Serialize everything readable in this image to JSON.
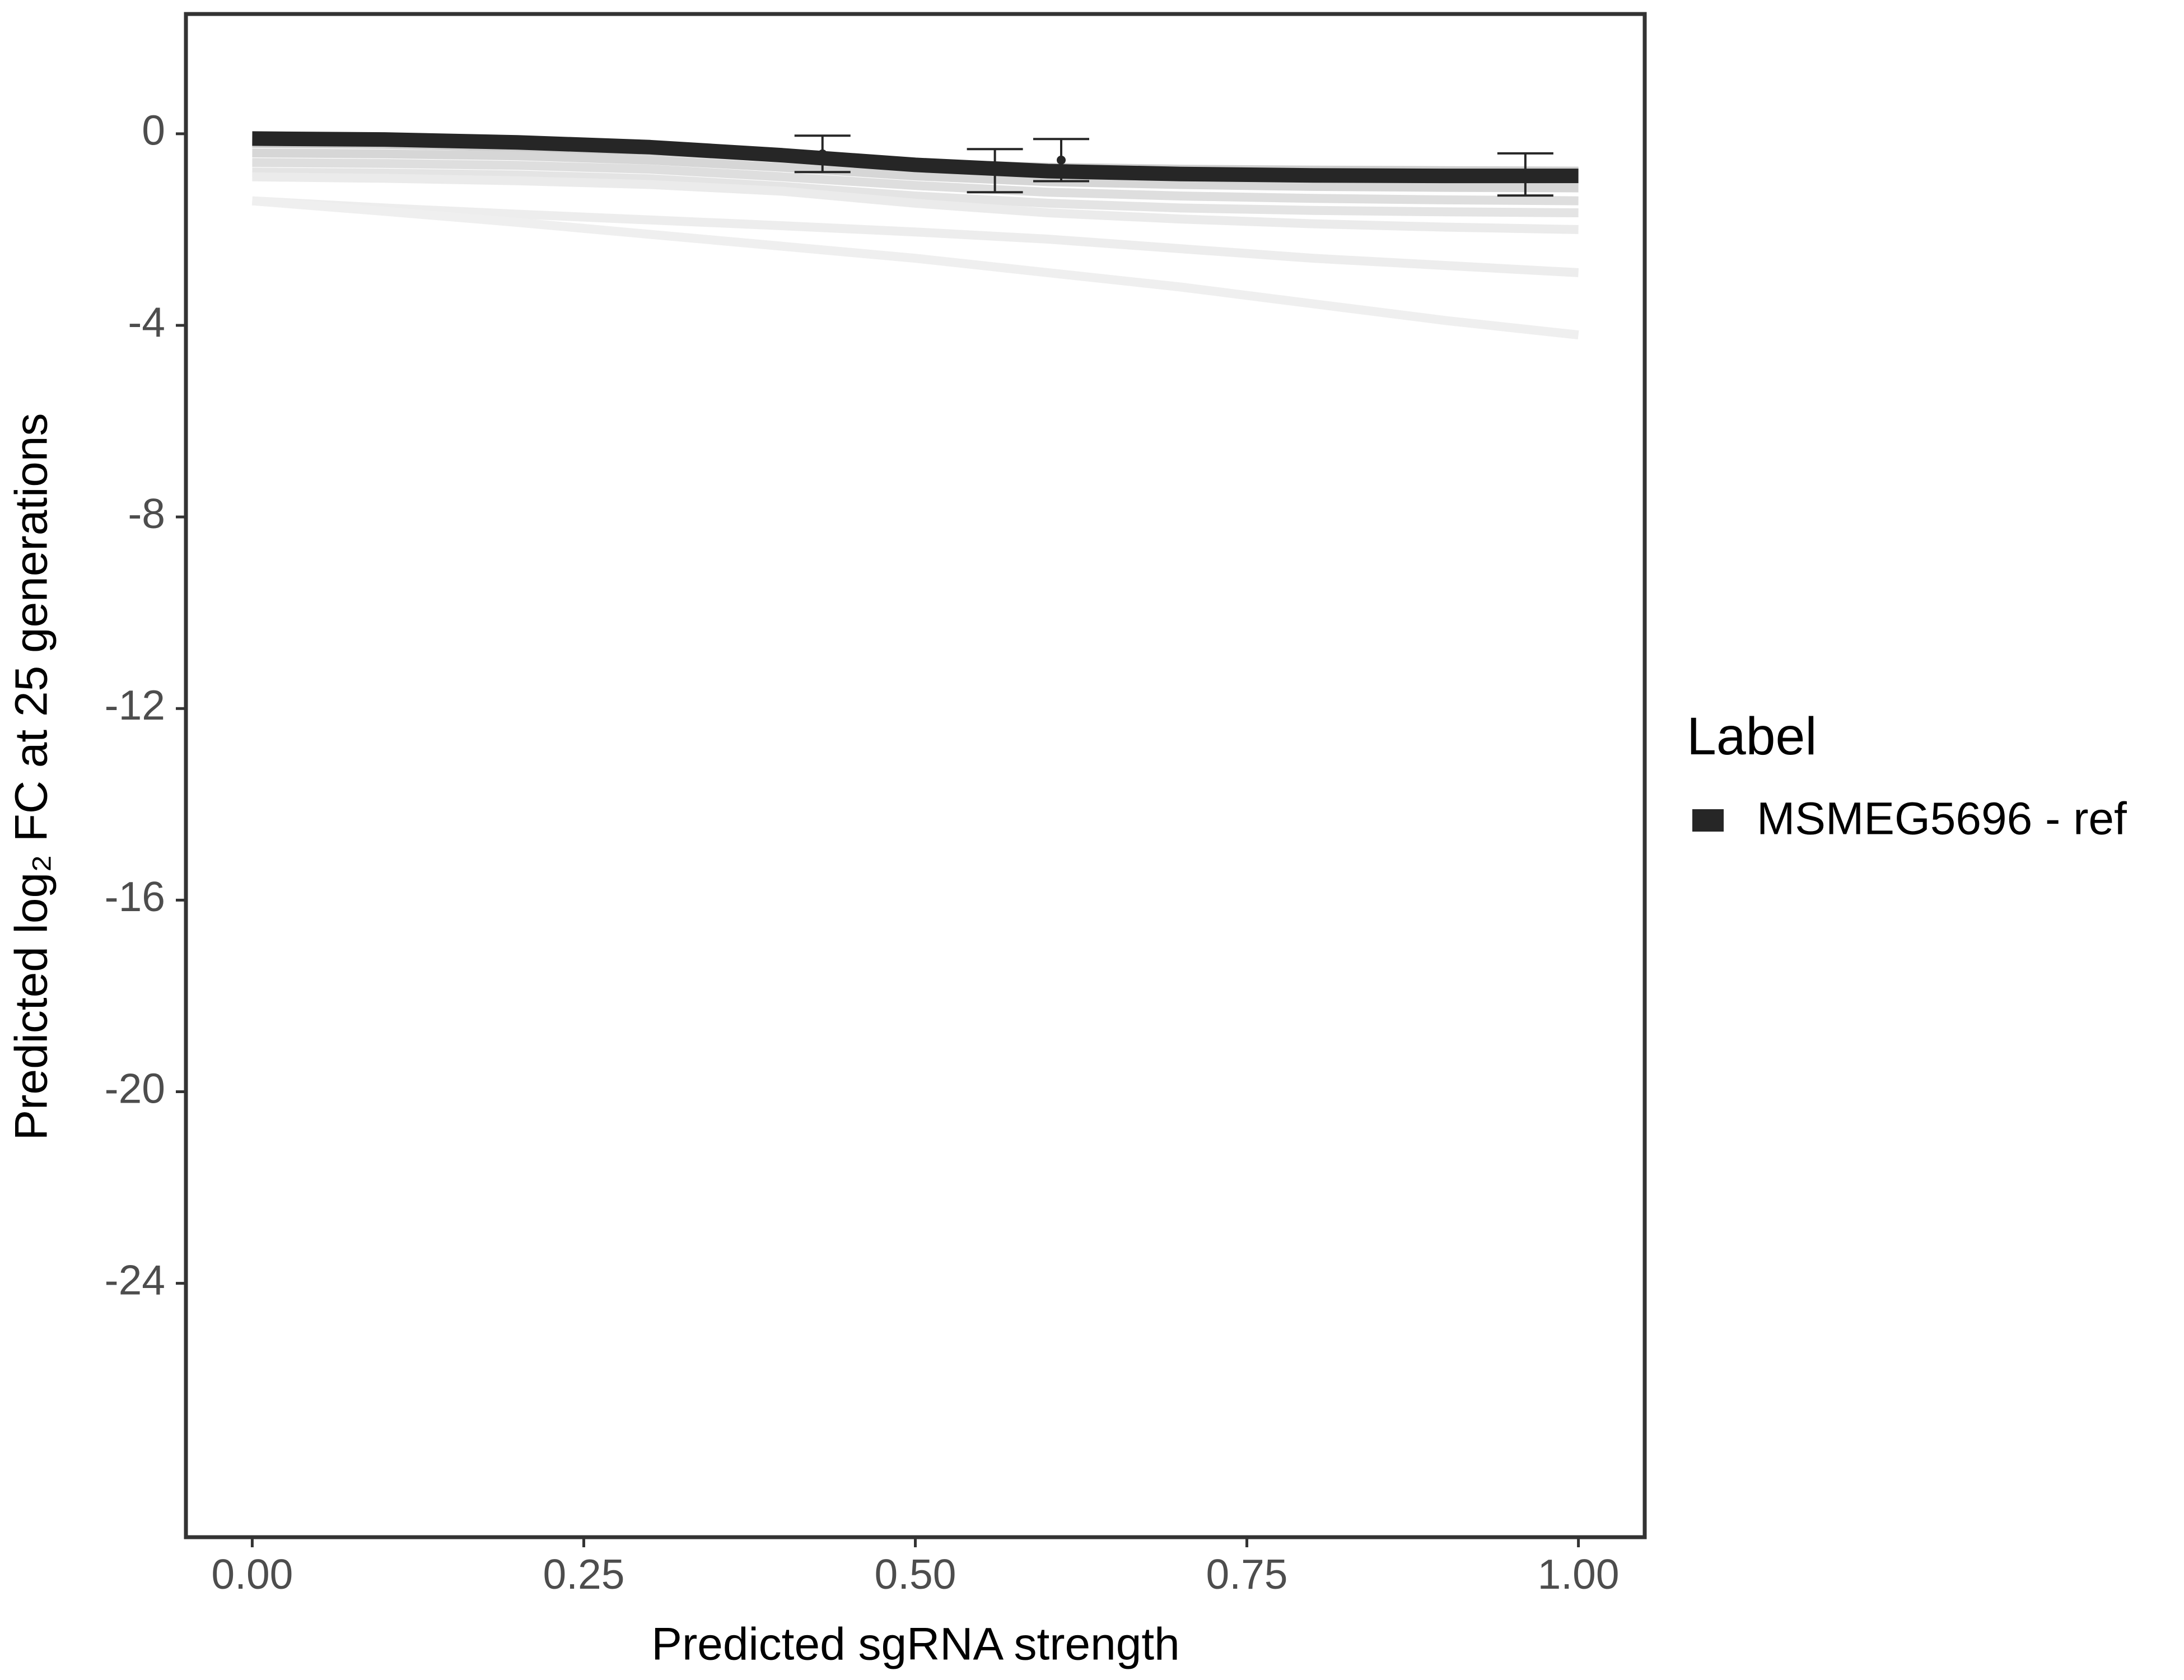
{
  "chart_data": {
    "type": "line",
    "x_label": "Predicted sgRNA strength",
    "y_label": "Predicted  log₂ FC at 25 generations",
    "legend_title": "Label",
    "legend_position": "right",
    "x": [
      0,
      0.1,
      0.2,
      0.3,
      0.4,
      0.5,
      0.6,
      0.7,
      0.8,
      0.9,
      1.0
    ],
    "series": [
      {
        "name": "MSMEG5696 - ref",
        "color": "#262626",
        "values": [
          -0.1,
          -0.12,
          -0.18,
          -0.28,
          -0.45,
          -0.65,
          -0.78,
          -0.84,
          -0.87,
          -0.88,
          -0.88
        ]
      }
    ],
    "reference_lines": [
      {
        "color": "#cfcfcf",
        "values": [
          -0.2,
          -0.22,
          -0.28,
          -0.36,
          -0.5,
          -0.62,
          -0.7,
          -0.74,
          -0.76,
          -0.77,
          -0.78
        ]
      },
      {
        "color": "#d6d6d6",
        "values": [
          -0.4,
          -0.42,
          -0.46,
          -0.55,
          -0.7,
          -0.88,
          -1.0,
          -1.06,
          -1.1,
          -1.12,
          -1.13
        ]
      },
      {
        "color": "#dedede",
        "values": [
          -0.6,
          -0.62,
          -0.66,
          -0.74,
          -0.9,
          -1.08,
          -1.22,
          -1.3,
          -1.35,
          -1.38,
          -1.4
        ]
      },
      {
        "color": "#e4e4e4",
        "values": [
          -0.8,
          -0.82,
          -0.86,
          -0.94,
          -1.1,
          -1.3,
          -1.45,
          -1.55,
          -1.6,
          -1.63,
          -1.65
        ]
      },
      {
        "color": "#ebebeb",
        "values": [
          -0.9,
          -0.93,
          -0.98,
          -1.06,
          -1.2,
          -1.45,
          -1.65,
          -1.78,
          -1.88,
          -1.95,
          -2.0
        ]
      },
      {
        "color": "#ededed",
        "values": [
          -1.4,
          -1.55,
          -1.68,
          -1.8,
          -1.92,
          -2.05,
          -2.2,
          -2.4,
          -2.6,
          -2.75,
          -2.9
        ]
      },
      {
        "color": "#efefef",
        "values": [
          -1.4,
          -1.62,
          -1.85,
          -2.1,
          -2.35,
          -2.6,
          -2.9,
          -3.2,
          -3.55,
          -3.9,
          -4.2
        ]
      }
    ],
    "errorbars": {
      "color": "#262626",
      "x": [
        0.43,
        0.56,
        0.61,
        0.96
      ],
      "values": [
        -0.42,
        -0.77,
        -0.55,
        -0.85
      ],
      "errors": [
        0.38,
        0.45,
        0.44,
        0.44
      ]
    },
    "xlim": [
      -0.05,
      1.05
    ],
    "ylim": [
      -29.3,
      2.5
    ],
    "xticks": [
      {
        "value": 0,
        "label": "0.00"
      },
      {
        "value": 0.25,
        "label": "0.25"
      },
      {
        "value": 0.5,
        "label": "0.50"
      },
      {
        "value": 0.75,
        "label": "0.75"
      },
      {
        "value": 1,
        "label": "1.00"
      }
    ],
    "yticks": [
      0,
      -4,
      -8,
      -12,
      -16,
      -20,
      -24
    ],
    "grid": false
  }
}
